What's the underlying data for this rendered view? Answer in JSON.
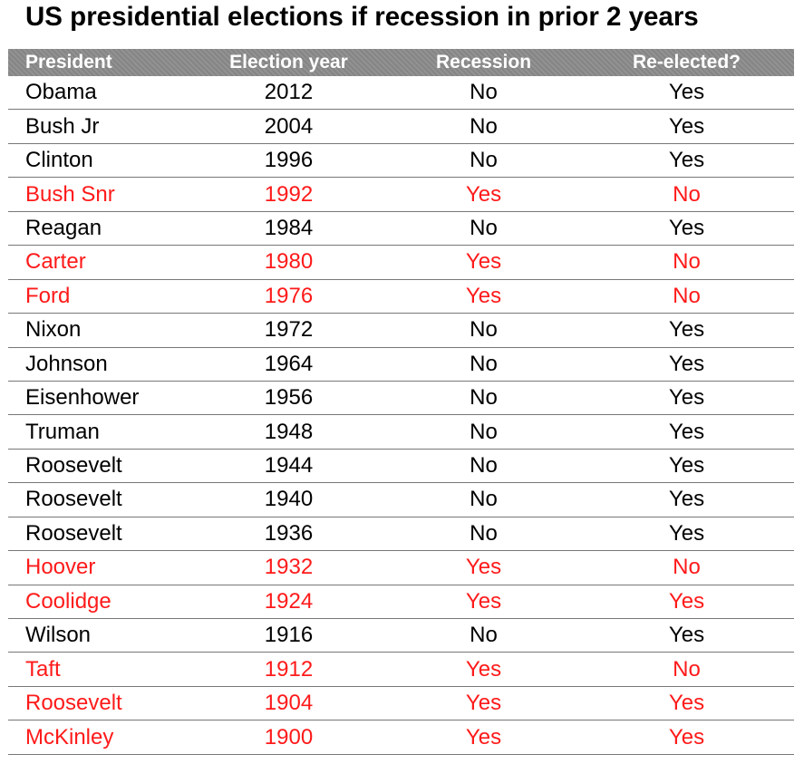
{
  "title": "US presidential elections if recession in prior 2 years",
  "headers": {
    "president": "President",
    "election_year": "Election year",
    "recession": "Recession",
    "reelected": "Re-elected?"
  },
  "colors": {
    "highlight": "#ff1a1a",
    "normal": "#000000",
    "header_bg": "#8c8c8c"
  },
  "rows": [
    {
      "president": "Obama",
      "year": "2012",
      "recession": "No",
      "reelected": "Yes",
      "highlight": false
    },
    {
      "president": "Bush Jr",
      "year": "2004",
      "recession": "No",
      "reelected": "Yes",
      "highlight": false
    },
    {
      "president": "Clinton",
      "year": "1996",
      "recession": "No",
      "reelected": "Yes",
      "highlight": false
    },
    {
      "president": "Bush Snr",
      "year": "1992",
      "recession": "Yes",
      "reelected": "No",
      "highlight": true
    },
    {
      "president": "Reagan",
      "year": "1984",
      "recession": "No",
      "reelected": "Yes",
      "highlight": false
    },
    {
      "president": "Carter",
      "year": "1980",
      "recession": "Yes",
      "reelected": "No",
      "highlight": true
    },
    {
      "president": "Ford",
      "year": "1976",
      "recession": "Yes",
      "reelected": "No",
      "highlight": true
    },
    {
      "president": "Nixon",
      "year": "1972",
      "recession": "No",
      "reelected": "Yes",
      "highlight": false
    },
    {
      "president": "Johnson",
      "year": "1964",
      "recession": "No",
      "reelected": "Yes",
      "highlight": false
    },
    {
      "president": "Eisenhower",
      "year": "1956",
      "recession": "No",
      "reelected": "Yes",
      "highlight": false
    },
    {
      "president": "Truman",
      "year": "1948",
      "recession": "No",
      "reelected": "Yes",
      "highlight": false
    },
    {
      "president": "Roosevelt",
      "year": "1944",
      "recession": "No",
      "reelected": "Yes",
      "highlight": false
    },
    {
      "president": "Roosevelt",
      "year": "1940",
      "recession": "No",
      "reelected": "Yes",
      "highlight": false
    },
    {
      "president": "Roosevelt",
      "year": "1936",
      "recession": "No",
      "reelected": "Yes",
      "highlight": false
    },
    {
      "president": "Hoover",
      "year": "1932",
      "recession": "Yes",
      "reelected": "No",
      "highlight": true
    },
    {
      "president": "Coolidge",
      "year": "1924",
      "recession": "Yes",
      "reelected": "Yes",
      "highlight": true
    },
    {
      "president": "Wilson",
      "year": "1916",
      "recession": "No",
      "reelected": "Yes",
      "highlight": false
    },
    {
      "president": "Taft",
      "year": "1912",
      "recession": "Yes",
      "reelected": "No",
      "highlight": true
    },
    {
      "president": "Roosevelt",
      "year": "1904",
      "recession": "Yes",
      "reelected": "Yes",
      "highlight": true
    },
    {
      "president": "McKinley",
      "year": "1900",
      "recession": "Yes",
      "reelected": "Yes",
      "highlight": true
    }
  ]
}
